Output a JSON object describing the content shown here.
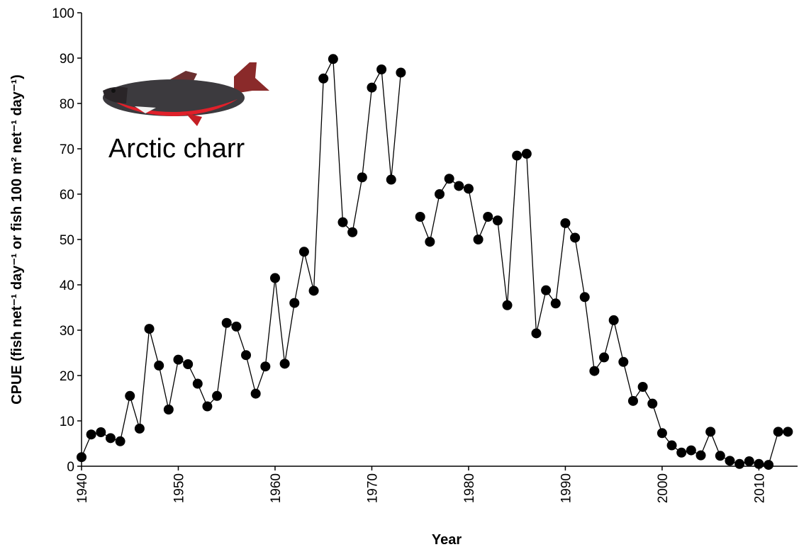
{
  "chart_data": {
    "type": "line",
    "annotation": "Arctic charr",
    "x_label": "Year",
    "y_label": "CPUE (fish net⁻¹ day⁻¹ or fish 100 m² net⁻¹ day⁻¹)",
    "x": [
      1940,
      1941,
      1942,
      1943,
      1944,
      1945,
      1946,
      1947,
      1948,
      1949,
      1950,
      1951,
      1952,
      1953,
      1954,
      1955,
      1956,
      1957,
      1958,
      1959,
      1960,
      1961,
      1962,
      1963,
      1964,
      1965,
      1966,
      1967,
      1968,
      1969,
      1970,
      1971,
      1972,
      1973,
      1974,
      1975,
      1976,
      1977,
      1978,
      1979,
      1980,
      1981,
      1982,
      1983,
      1984,
      1985,
      1986,
      1987,
      1988,
      1989,
      1990,
      1991,
      1992,
      1993,
      1994,
      1995,
      1996,
      1997,
      1998,
      1999,
      2000,
      2001,
      2002,
      2003,
      2004,
      2005,
      2006,
      2007,
      2008,
      2009,
      2010,
      2011,
      2012,
      2013
    ],
    "series": [
      {
        "color": "#000000",
        "values": [
          2,
          7,
          7.5,
          6.2,
          5.5,
          15.5,
          8.3,
          30.3,
          22.2,
          12.5,
          23.5,
          22.5,
          18.2,
          13.2,
          15.5,
          31.6,
          30.8,
          24.5,
          16,
          22,
          41.5,
          22.6,
          36,
          47.3,
          38.7,
          85.5,
          89.8,
          53.8,
          51.6,
          63.7,
          83.5,
          87.5,
          63.2,
          86.8,
          null,
          55,
          49.5,
          60,
          63.4,
          61.8,
          61.2,
          50,
          55,
          54.2,
          35.5,
          68.5,
          68.9,
          29.3,
          38.8,
          35.9,
          53.6,
          50.4,
          37.3,
          21,
          24,
          32.2,
          23,
          14.4,
          17.5,
          13.8,
          7.3,
          4.6,
          3,
          3.5,
          2.4,
          7.6,
          2.3,
          1.2,
          0.5,
          1.1,
          0.5,
          0.3,
          7.6,
          7.6
        ]
      }
    ],
    "xlim": [
      1940,
      2014
    ],
    "xticks": [
      1940,
      1950,
      1960,
      1970,
      1980,
      1990,
      2000,
      2010
    ],
    "ylim": [
      0,
      100
    ],
    "yticks": [
      0,
      10,
      20,
      30,
      40,
      50,
      60,
      70,
      80,
      90,
      100
    ],
    "grid": false
  }
}
